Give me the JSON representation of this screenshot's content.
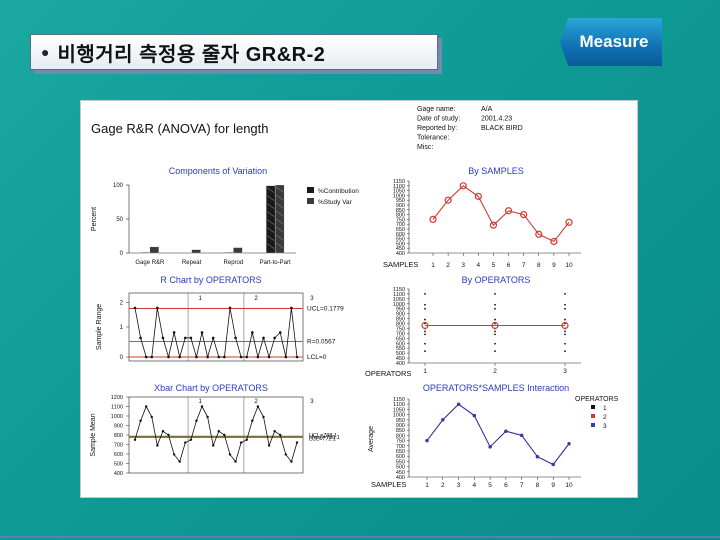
{
  "slide": {
    "bullet": "●",
    "title": "비행거리 측정용 줄자 GR&R-2",
    "badge": "Measure"
  },
  "report": {
    "main_title": "Gage R&R (ANOVA) for length",
    "info_labels": [
      "Gage name:",
      "Date of study:",
      "Reported by:",
      "Tolerance:",
      "Misc:"
    ],
    "info_values": [
      "A/A",
      "2001.4.23",
      "BLACK BIRD",
      "",
      ""
    ]
  },
  "colors": {
    "red": "#d23a2e",
    "blue": "#2a3bbd",
    "green": "#2aa52a",
    "black": "#111111"
  },
  "chart_data": [
    {
      "type": "bar",
      "title": "Components of Variation",
      "ylabel": "Percent",
      "categories": [
        "Gage R&R",
        "Repeat",
        "Reprod",
        "Part-to-Part"
      ],
      "series": [
        {
          "name": "%Contribution",
          "values": [
            1,
            0,
            1,
            99
          ]
        },
        {
          "name": "%Study Var",
          "values": [
            9,
            5,
            8,
            100
          ]
        }
      ],
      "ylim": [
        0,
        100
      ],
      "yticks": [
        "0",
        "50",
        "100"
      ]
    },
    {
      "type": "line",
      "title": "By SAMPLES",
      "xlabel": "SAMPLES",
      "x": [
        1,
        2,
        3,
        4,
        5,
        6,
        7,
        8,
        9,
        10
      ],
      "series": [
        {
          "values": [
            750,
            950,
            1100,
            990,
            690,
            840,
            800,
            595,
            520,
            720
          ]
        }
      ],
      "ylim": [
        400,
        1150
      ],
      "yticks": [
        "400",
        "450",
        "500",
        "550",
        "600",
        "650",
        "700",
        "750",
        "800",
        "850",
        "900",
        "950",
        "1000",
        "1050",
        "1100",
        "1150"
      ]
    },
    {
      "type": "line",
      "title": "R Chart by OPERATORS",
      "ylabel": "Sample Range",
      "operators": [
        "1",
        "2",
        "3"
      ],
      "control_labels": [
        "UCL=0.1779",
        "R=0.0567",
        "LCL=0"
      ],
      "series": [
        {
          "values": [
            0.18,
            0.07,
            0.0,
            0.0,
            0.18,
            0.07,
            0.0,
            0.09,
            0.0,
            0.07,
            0.07,
            0.0,
            0.09,
            0.0,
            0.07,
            0.0,
            0.0,
            0.18,
            0.07,
            0.0,
            0.0,
            0.09,
            0.0,
            0.07,
            0.0,
            0.07,
            0.09,
            0.0,
            0.18,
            0.0
          ]
        }
      ],
      "yticks": [
        "0",
        "1",
        "2"
      ]
    },
    {
      "type": "scatter",
      "title": "By OPERATORS",
      "xlabel": "OPERATORS",
      "x": [
        1,
        2,
        3
      ],
      "means": [
        780,
        780,
        780
      ],
      "ylim": [
        400,
        1150
      ],
      "yticks": [
        "400",
        "450",
        "500",
        "550",
        "600",
        "650",
        "700",
        "750",
        "800",
        "850",
        "900",
        "950",
        "1000",
        "1050",
        "1100",
        "1150"
      ]
    },
    {
      "type": "line",
      "title": "Xbar Chart by OPERATORS",
      "ylabel": "Sample Mean",
      "operators": [
        "1",
        "2",
        "3"
      ],
      "control_labels": [
        "UCL=788.1",
        "Mean=780.1",
        "LCL=772.1"
      ],
      "series": [
        {
          "values": [
            750,
            950,
            1100,
            990,
            690,
            840,
            800,
            595,
            520,
            720,
            750,
            950,
            1100,
            990,
            690,
            840,
            800,
            595,
            520,
            720,
            750,
            950,
            1100,
            990,
            690,
            840,
            800,
            595,
            520,
            720
          ]
        }
      ],
      "ylim": [
        400,
        1200
      ],
      "yticks": [
        "400",
        "500",
        "600",
        "700",
        "800",
        "900",
        "1000",
        "1100",
        "1200"
      ]
    },
    {
      "type": "line",
      "title": "OPERATORS*SAMPLES Interaction",
      "xlabel": "SAMPLES",
      "ylabel": "Average",
      "x": [
        1,
        2,
        3,
        4,
        5,
        6,
        7,
        8,
        9,
        10
      ],
      "legend_title": "OPERATORS",
      "legend": [
        "1",
        "2",
        "3"
      ],
      "series": [
        {
          "name": "1",
          "values": [
            750,
            950,
            1100,
            990,
            690,
            840,
            800,
            595,
            520,
            720
          ]
        },
        {
          "name": "2",
          "values": [
            750,
            950,
            1100,
            990,
            690,
            840,
            800,
            595,
            520,
            720
          ]
        },
        {
          "name": "3",
          "values": [
            750,
            950,
            1100,
            990,
            690,
            840,
            800,
            595,
            520,
            720
          ]
        }
      ],
      "ylim": [
        400,
        1150
      ],
      "yticks": [
        "400",
        "450",
        "500",
        "550",
        "600",
        "650",
        "700",
        "750",
        "800",
        "850",
        "900",
        "950",
        "1000",
        "1050",
        "1100",
        "1150"
      ]
    }
  ]
}
